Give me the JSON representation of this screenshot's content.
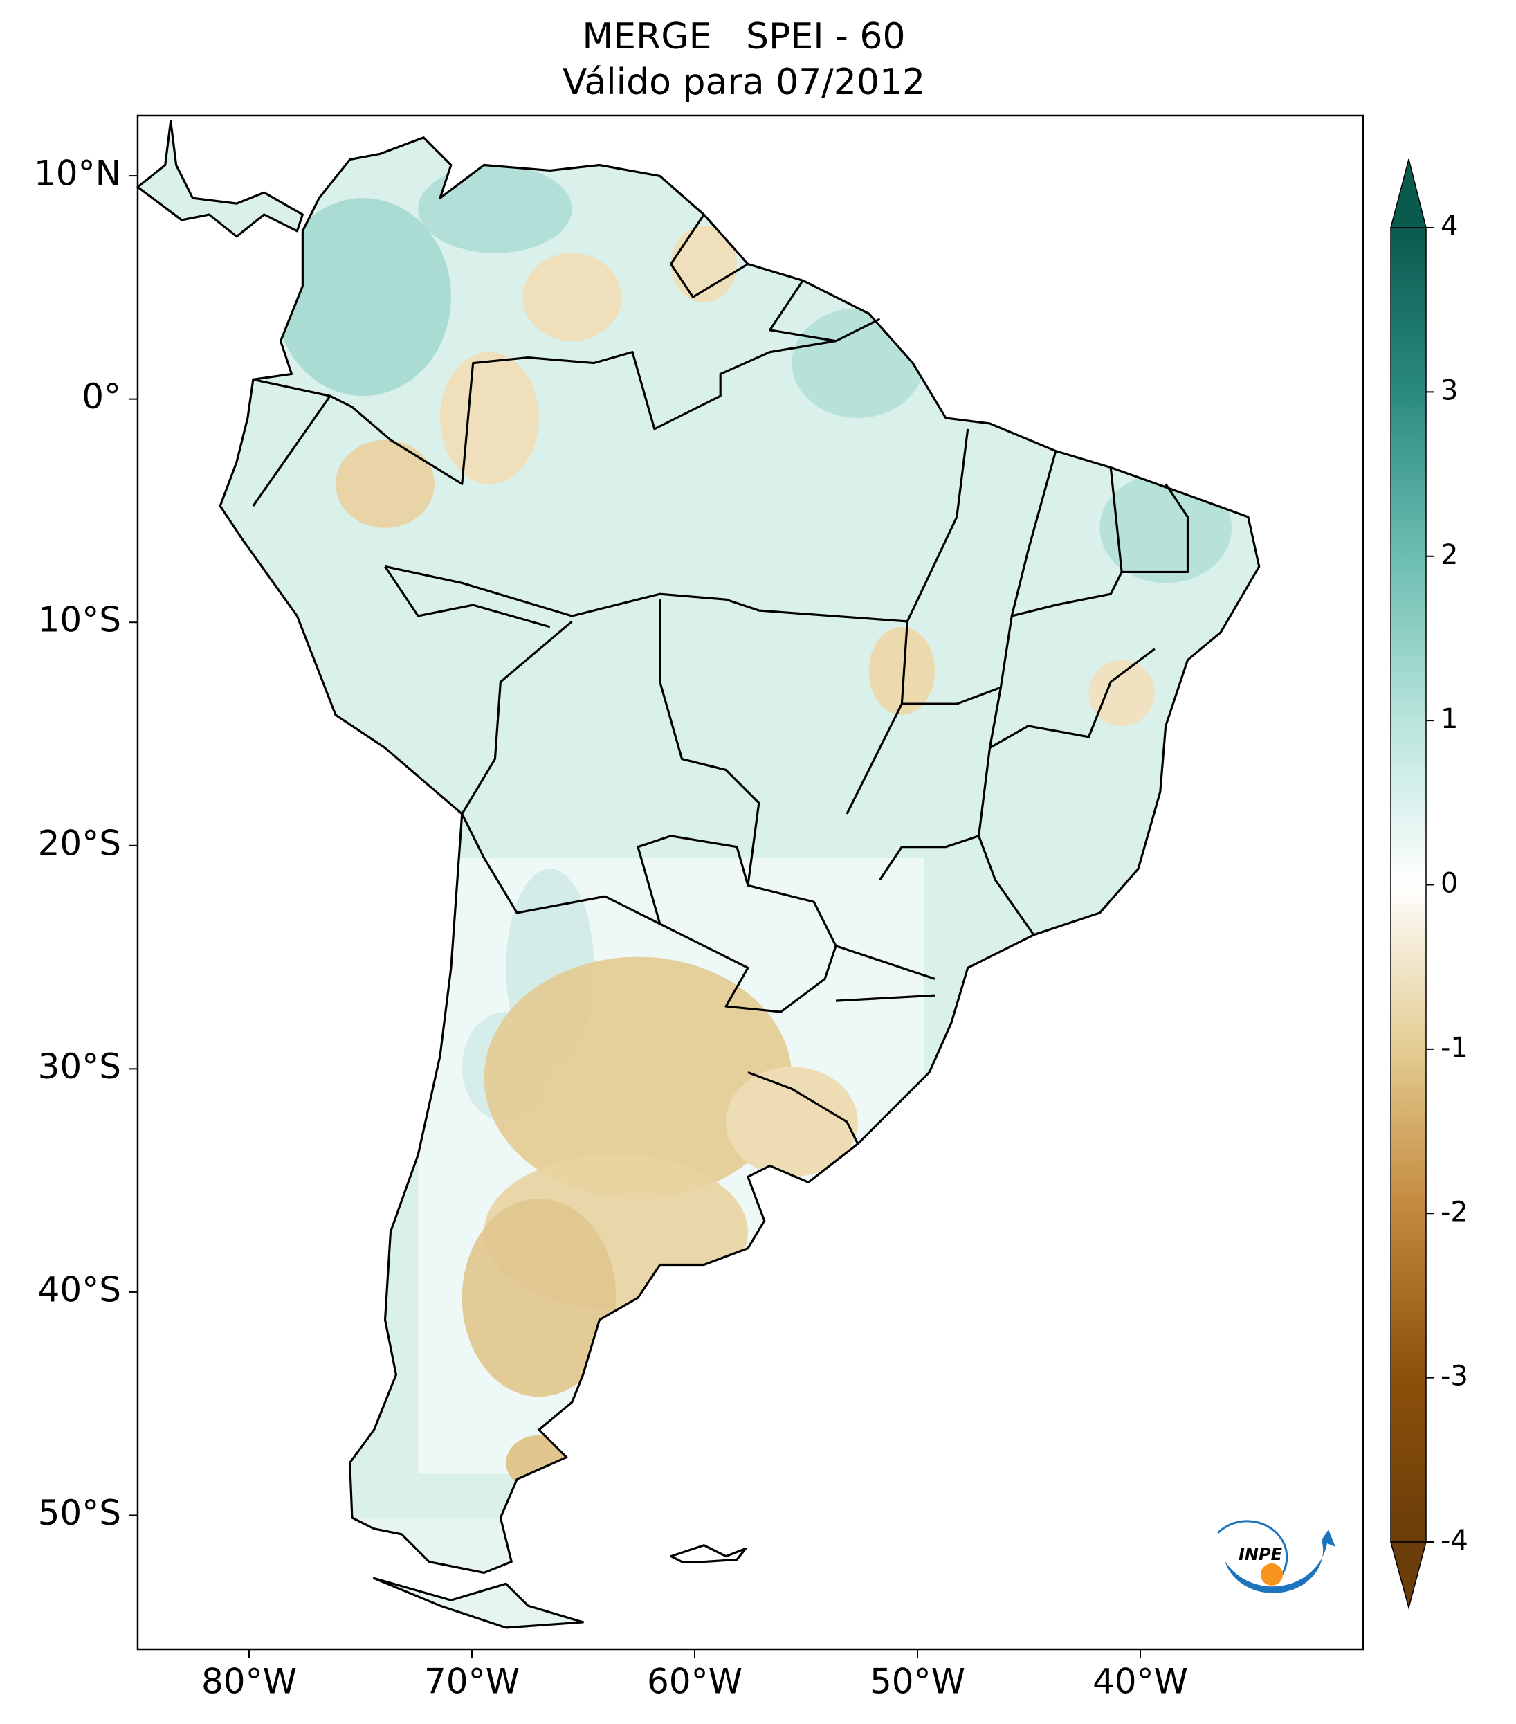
{
  "title": [
    "MERGE   SPEI - 60",
    "Válido para 07/2012"
  ],
  "map": {
    "xlim": [
      -85,
      -30
    ],
    "ylim": [
      -56,
      12.7
    ],
    "xticks": [
      {
        "value": -80,
        "label": "80°W"
      },
      {
        "value": -70,
        "label": "70°W"
      },
      {
        "value": -60,
        "label": "60°W"
      },
      {
        "value": -50,
        "label": "50°W"
      },
      {
        "value": -40,
        "label": "40°W"
      }
    ],
    "yticks": [
      {
        "value": 10,
        "label": "10°N"
      },
      {
        "value": 0,
        "label": "0°"
      },
      {
        "value": -10,
        "label": "10°S"
      },
      {
        "value": -20,
        "label": "20°S"
      },
      {
        "value": -30,
        "label": "30°S"
      },
      {
        "value": -40,
        "label": "40°S"
      },
      {
        "value": -50,
        "label": "50°S"
      }
    ]
  },
  "colorbar": {
    "lim": [
      -4,
      4
    ],
    "ticks": [
      -4,
      -3,
      -2,
      -1,
      0,
      1,
      2,
      3,
      4
    ]
  },
  "logo": "INPE"
}
